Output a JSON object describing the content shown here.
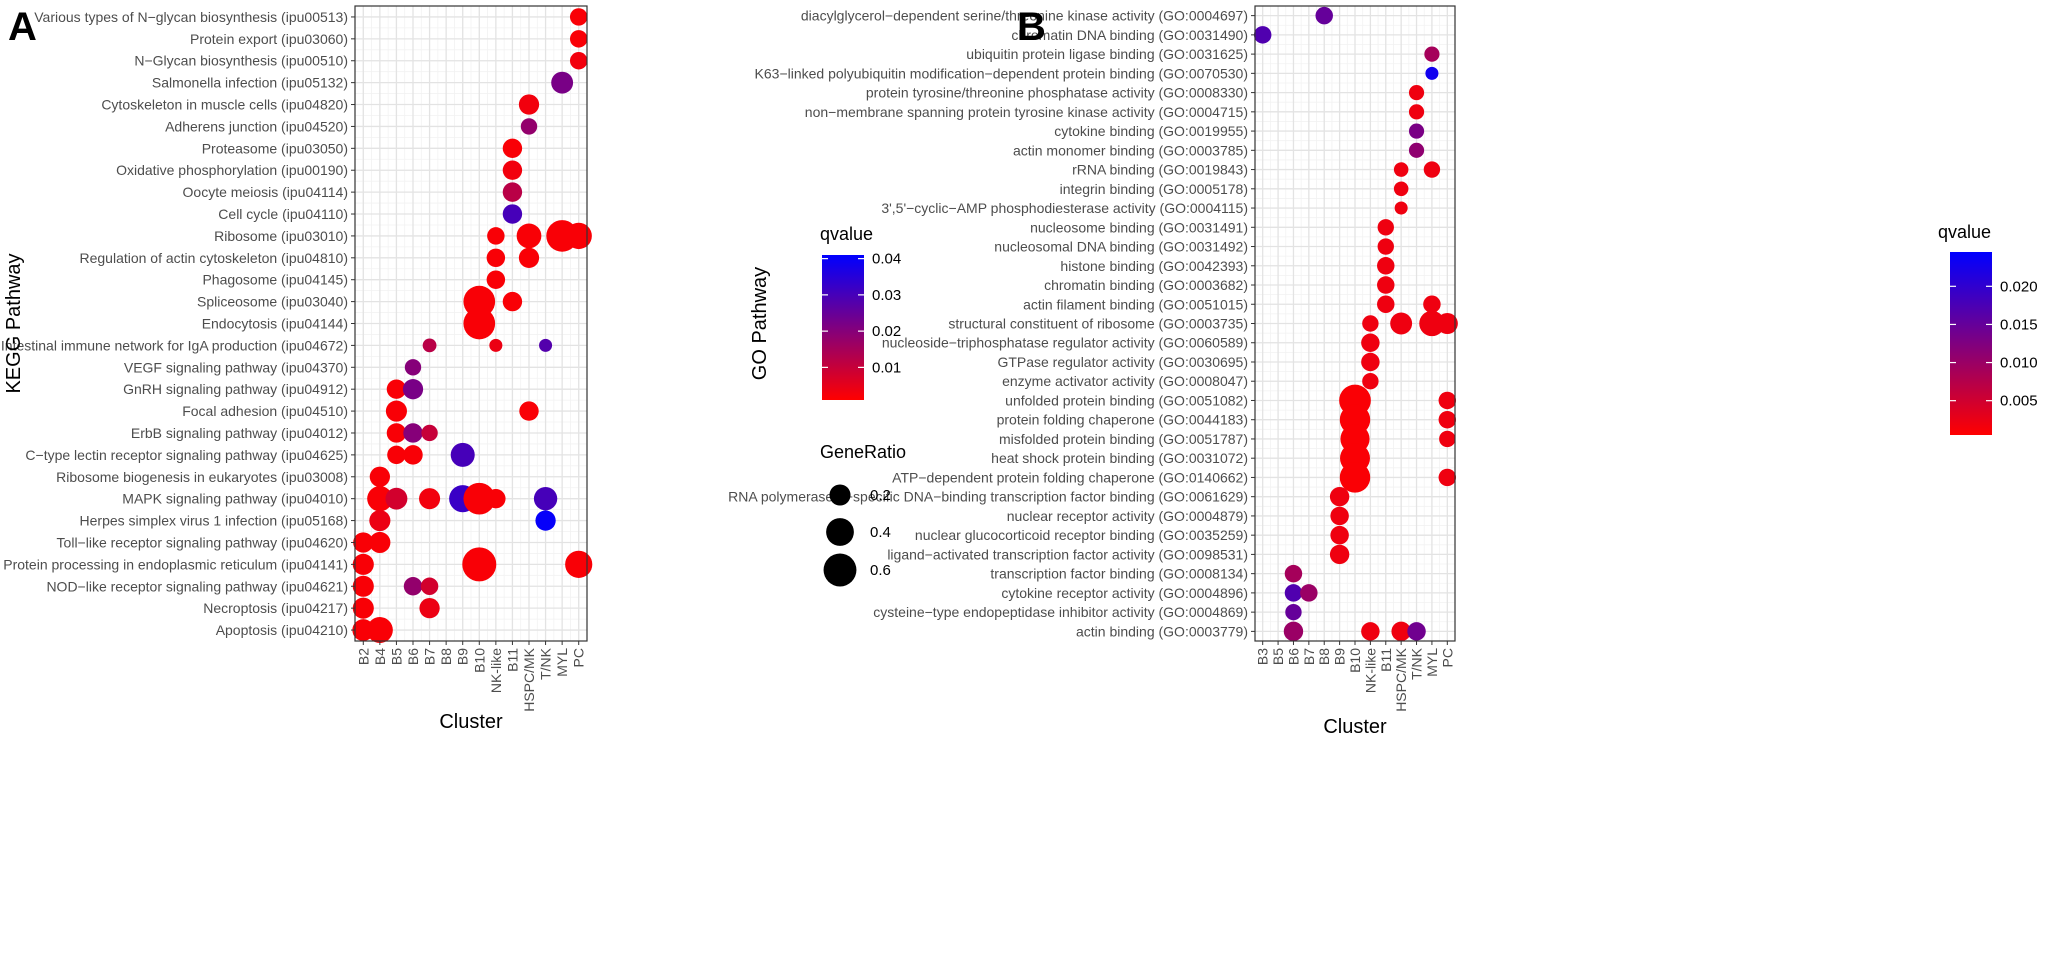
{
  "chart_data": [
    {
      "panel": "A",
      "type": "scatter",
      "xlabel": "Cluster",
      "ylabel": "KEGG Pathway",
      "categories_x": [
        "B2",
        "B4",
        "B5",
        "B6",
        "B7",
        "B8",
        "B9",
        "B10",
        "NK-like",
        "B11",
        "HSPC/MK",
        "T/NK",
        "MYL",
        "PC"
      ],
      "categories_y": [
        "Various types of N−glycan biosynthesis (ipu00513)",
        "Protein export (ipu03060)",
        "N−Glycan biosynthesis (ipu00510)",
        "Salmonella infection (ipu05132)",
        "Cytoskeleton in muscle cells (ipu04820)",
        "Adherens junction (ipu04520)",
        "Proteasome (ipu03050)",
        "Oxidative phosphorylation (ipu00190)",
        "Oocyte meiosis (ipu04114)",
        "Cell cycle (ipu04110)",
        "Ribosome (ipu03010)",
        "Regulation of actin cytoskeleton (ipu04810)",
        "Phagosome (ipu04145)",
        "Spliceosome (ipu03040)",
        "Endocytosis (ipu04144)",
        "Intestinal immune network for IgA production (ipu04672)",
        "VEGF signaling pathway (ipu04370)",
        "GnRH signaling pathway (ipu04912)",
        "Focal adhesion (ipu04510)",
        "ErbB signaling pathway (ipu04012)",
        "C−type lectin receptor signaling pathway (ipu04625)",
        "Ribosome biogenesis in eukaryotes (ipu03008)",
        "MAPK signaling pathway (ipu04010)",
        "Herpes simplex virus 1 infection (ipu05168)",
        "Toll−like receptor signaling pathway (ipu04620)",
        "Protein processing in endoplasmic reticulum (ipu04141)",
        "NOD−like receptor signaling pathway (ipu04621)",
        "Necroptosis (ipu04217)",
        "Apoptosis (ipu04210)"
      ],
      "points": [
        {
          "x": "PC",
          "y": 0,
          "ratio": 0.12,
          "q": 0.002
        },
        {
          "x": "PC",
          "y": 1,
          "ratio": 0.12,
          "q": 0.002
        },
        {
          "x": "PC",
          "y": 2,
          "ratio": 0.12,
          "q": 0.003
        },
        {
          "x": "MYL",
          "y": 3,
          "ratio": 0.22,
          "q": 0.022
        },
        {
          "x": "HSPC/MK",
          "y": 4,
          "ratio": 0.18,
          "q": 0.003
        },
        {
          "x": "HSPC/MK",
          "y": 5,
          "ratio": 0.1,
          "q": 0.018
        },
        {
          "x": "B11",
          "y": 6,
          "ratio": 0.16,
          "q": 0.002
        },
        {
          "x": "B11",
          "y": 7,
          "ratio": 0.16,
          "q": 0.003
        },
        {
          "x": "B11",
          "y": 8,
          "ratio": 0.16,
          "q": 0.012
        },
        {
          "x": "B11",
          "y": 9,
          "ratio": 0.16,
          "q": 0.03
        },
        {
          "x": "NK-like",
          "y": 10,
          "ratio": 0.12,
          "q": 0.002
        },
        {
          "x": "HSPC/MK",
          "y": 10,
          "ratio": 0.3,
          "q": 0.002
        },
        {
          "x": "MYL",
          "y": 10,
          "ratio": 0.55,
          "q": 0.002
        },
        {
          "x": "PC",
          "y": 10,
          "ratio": 0.35,
          "q": 0.002
        },
        {
          "x": "NK-like",
          "y": 11,
          "ratio": 0.14,
          "q": 0.002
        },
        {
          "x": "HSPC/MK",
          "y": 11,
          "ratio": 0.18,
          "q": 0.002
        },
        {
          "x": "NK-like",
          "y": 12,
          "ratio": 0.14,
          "q": 0.002
        },
        {
          "x": "B10",
          "y": 13,
          "ratio": 0.55,
          "q": 0.002
        },
        {
          "x": "B11",
          "y": 13,
          "ratio": 0.16,
          "q": 0.002
        },
        {
          "x": "B10",
          "y": 14,
          "ratio": 0.55,
          "q": 0.002
        },
        {
          "x": "B7",
          "y": 15,
          "ratio": 0.06,
          "q": 0.012
        },
        {
          "x": "NK-like",
          "y": 15,
          "ratio": 0.05,
          "q": 0.004
        },
        {
          "x": "T/NK",
          "y": 15,
          "ratio": 0.05,
          "q": 0.028
        },
        {
          "x": "B6",
          "y": 16,
          "ratio": 0.1,
          "q": 0.02
        },
        {
          "x": "B5",
          "y": 17,
          "ratio": 0.16,
          "q": 0.002
        },
        {
          "x": "B6",
          "y": 17,
          "ratio": 0.18,
          "q": 0.022
        },
        {
          "x": "B5",
          "y": 18,
          "ratio": 0.2,
          "q": 0.002
        },
        {
          "x": "HSPC/MK",
          "y": 18,
          "ratio": 0.16,
          "q": 0.002
        },
        {
          "x": "B5",
          "y": 19,
          "ratio": 0.16,
          "q": 0.002
        },
        {
          "x": "B6",
          "y": 19,
          "ratio": 0.16,
          "q": 0.02
        },
        {
          "x": "B7",
          "y": 19,
          "ratio": 0.1,
          "q": 0.01
        },
        {
          "x": "B5",
          "y": 20,
          "ratio": 0.14,
          "q": 0.002
        },
        {
          "x": "B6",
          "y": 20,
          "ratio": 0.16,
          "q": 0.002
        },
        {
          "x": "B9",
          "y": 20,
          "ratio": 0.28,
          "q": 0.03
        },
        {
          "x": "B4",
          "y": 21,
          "ratio": 0.18,
          "q": 0.002
        },
        {
          "x": "B4",
          "y": 22,
          "ratio": 0.32,
          "q": 0.002
        },
        {
          "x": "B5",
          "y": 22,
          "ratio": 0.22,
          "q": 0.008
        },
        {
          "x": "B7",
          "y": 22,
          "ratio": 0.2,
          "q": 0.003
        },
        {
          "x": "B9",
          "y": 22,
          "ratio": 0.38,
          "q": 0.032
        },
        {
          "x": "B10",
          "y": 22,
          "ratio": 0.55,
          "q": 0.002
        },
        {
          "x": "NK-like",
          "y": 22,
          "ratio": 0.16,
          "q": 0.002
        },
        {
          "x": "T/NK",
          "y": 22,
          "ratio": 0.26,
          "q": 0.03
        },
        {
          "x": "B4",
          "y": 23,
          "ratio": 0.2,
          "q": 0.004
        },
        {
          "x": "T/NK",
          "y": 23,
          "ratio": 0.18,
          "q": 0.04
        },
        {
          "x": "B2",
          "y": 24,
          "ratio": 0.18,
          "q": 0.002
        },
        {
          "x": "B4",
          "y": 24,
          "ratio": 0.2,
          "q": 0.002
        },
        {
          "x": "B2",
          "y": 25,
          "ratio": 0.2,
          "q": 0.002
        },
        {
          "x": "B10",
          "y": 25,
          "ratio": 0.65,
          "q": 0.002
        },
        {
          "x": "PC",
          "y": 25,
          "ratio": 0.38,
          "q": 0.002
        },
        {
          "x": "B2",
          "y": 26,
          "ratio": 0.2,
          "q": 0.002
        },
        {
          "x": "B6",
          "y": 26,
          "ratio": 0.14,
          "q": 0.018
        },
        {
          "x": "B7",
          "y": 26,
          "ratio": 0.12,
          "q": 0.008
        },
        {
          "x": "B2",
          "y": 27,
          "ratio": 0.2,
          "q": 0.002
        },
        {
          "x": "B7",
          "y": 27,
          "ratio": 0.18,
          "q": 0.004
        },
        {
          "x": "B2",
          "y": 28,
          "ratio": 0.22,
          "q": 0.002
        },
        {
          "x": "B4",
          "y": 28,
          "ratio": 0.34,
          "q": 0.002
        }
      ],
      "legend": {
        "color_title": "qvalue",
        "color_ticks": [
          "0.04",
          "0.03",
          "0.02",
          "0.01"
        ],
        "color_tick_values": [
          0.04,
          0.03,
          0.02,
          0.01
        ],
        "color_range": [
          0.001,
          0.041
        ],
        "size_title": "GeneRatio",
        "size_ticks": [
          "0.2",
          "0.4",
          "0.6"
        ],
        "size_tick_values": [
          0.2,
          0.4,
          0.6
        ]
      }
    },
    {
      "panel": "B",
      "type": "scatter",
      "xlabel": "Cluster",
      "ylabel": "GO Pathway",
      "categories_x": [
        "B3",
        "B5",
        "B6",
        "B7",
        "B8",
        "B9",
        "B10",
        "NK-like",
        "B11",
        "HSPC/MK",
        "T/NK",
        "MYL",
        "PC"
      ],
      "categories_y": [
        "diacylglycerol−dependent serine/threonine kinase activity (GO:0004697)",
        "chromatin DNA binding (GO:0031490)",
        "ubiquitin protein ligase binding (GO:0031625)",
        "K63−linked polyubiquitin modification−dependent protein binding (GO:0070530)",
        "protein tyrosine/threonine phosphatase activity (GO:0008330)",
        "non−membrane spanning protein tyrosine kinase activity (GO:0004715)",
        "cytokine binding (GO:0019955)",
        "actin monomer binding (GO:0003785)",
        "rRNA binding (GO:0019843)",
        "integrin binding (GO:0005178)",
        "3',5'−cyclic−AMP phosphodiesterase activity (GO:0004115)",
        "nucleosome binding (GO:0031491)",
        "nucleosomal DNA binding (GO:0031492)",
        "histone binding (GO:0042393)",
        "chromatin binding (GO:0003682)",
        "actin filament binding (GO:0051015)",
        "structural constituent of ribosome (GO:0003735)",
        "nucleoside−triphosphatase regulator activity (GO:0060589)",
        "GTPase regulator activity (GO:0030695)",
        "enzyme activator activity (GO:0008047)",
        "unfolded protein binding (GO:0051082)",
        "protein folding chaperone (GO:0044183)",
        "misfolded protein binding (GO:0051787)",
        "heat shock protein binding (GO:0031072)",
        "ATP−dependent protein folding chaperone (GO:0140662)",
        "RNA polymerase II−specific DNA−binding transcription factor binding (GO:0061629)",
        "nuclear receptor activity (GO:0004879)",
        "nuclear glucocorticoid receptor binding (GO:0035259)",
        "ligand−activated transcription factor activity (GO:0098531)",
        "transcription factor binding (GO:0008134)",
        "cytokine receptor activity (GO:0004896)",
        "cysteine−type endopeptidase inhibitor activity (GO:0004869)",
        "actin binding (GO:0003779)"
      ],
      "points": [
        {
          "x": "B8",
          "y": 0,
          "ratio": 0.12,
          "q": 0.015
        },
        {
          "x": "B3",
          "y": 1,
          "ratio": 0.12,
          "q": 0.017
        },
        {
          "x": "MYL",
          "y": 2,
          "ratio": 0.08,
          "q": 0.009
        },
        {
          "x": "MYL",
          "y": 3,
          "ratio": 0.05,
          "q": 0.023
        },
        {
          "x": "T/NK",
          "y": 4,
          "ratio": 0.08,
          "q": 0.002
        },
        {
          "x": "T/NK",
          "y": 5,
          "ratio": 0.08,
          "q": 0.002
        },
        {
          "x": "T/NK",
          "y": 6,
          "ratio": 0.08,
          "q": 0.013
        },
        {
          "x": "T/NK",
          "y": 7,
          "ratio": 0.08,
          "q": 0.011
        },
        {
          "x": "HSPC/MK",
          "y": 8,
          "ratio": 0.07,
          "q": 0.002
        },
        {
          "x": "MYL",
          "y": 8,
          "ratio": 0.1,
          "q": 0.002
        },
        {
          "x": "HSPC/MK",
          "y": 9,
          "ratio": 0.07,
          "q": 0.002
        },
        {
          "x": "HSPC/MK",
          "y": 10,
          "ratio": 0.05,
          "q": 0.002
        },
        {
          "x": "B11",
          "y": 11,
          "ratio": 0.1,
          "q": 0.002
        },
        {
          "x": "B11",
          "y": 12,
          "ratio": 0.1,
          "q": 0.002
        },
        {
          "x": "B11",
          "y": 13,
          "ratio": 0.12,
          "q": 0.002
        },
        {
          "x": "B11",
          "y": 14,
          "ratio": 0.12,
          "q": 0.002
        },
        {
          "x": "B11",
          "y": 15,
          "ratio": 0.12,
          "q": 0.002
        },
        {
          "x": "MYL",
          "y": 15,
          "ratio": 0.12,
          "q": 0.002
        },
        {
          "x": "NK-like",
          "y": 16,
          "ratio": 0.1,
          "q": 0.002
        },
        {
          "x": "HSPC/MK",
          "y": 16,
          "ratio": 0.22,
          "q": 0.002
        },
        {
          "x": "MYL",
          "y": 16,
          "ratio": 0.32,
          "q": 0.002
        },
        {
          "x": "PC",
          "y": 16,
          "ratio": 0.2,
          "q": 0.002
        },
        {
          "x": "NK-like",
          "y": 17,
          "ratio": 0.14,
          "q": 0.002
        },
        {
          "x": "NK-like",
          "y": 18,
          "ratio": 0.14,
          "q": 0.002
        },
        {
          "x": "NK-like",
          "y": 19,
          "ratio": 0.1,
          "q": 0.002
        },
        {
          "x": "B10",
          "y": 20,
          "ratio": 0.55,
          "q": 0.001
        },
        {
          "x": "PC",
          "y": 20,
          "ratio": 0.12,
          "q": 0.002
        },
        {
          "x": "B10",
          "y": 21,
          "ratio": 0.5,
          "q": 0.001
        },
        {
          "x": "PC",
          "y": 21,
          "ratio": 0.12,
          "q": 0.002
        },
        {
          "x": "B10",
          "y": 22,
          "ratio": 0.45,
          "q": 0.001
        },
        {
          "x": "PC",
          "y": 22,
          "ratio": 0.1,
          "q": 0.002
        },
        {
          "x": "B10",
          "y": 23,
          "ratio": 0.48,
          "q": 0.001
        },
        {
          "x": "B10",
          "y": 24,
          "ratio": 0.5,
          "q": 0.001
        },
        {
          "x": "PC",
          "y": 24,
          "ratio": 0.12,
          "q": 0.002
        },
        {
          "x": "B9",
          "y": 25,
          "ratio": 0.16,
          "q": 0.002
        },
        {
          "x": "B9",
          "y": 26,
          "ratio": 0.14,
          "q": 0.002
        },
        {
          "x": "B9",
          "y": 27,
          "ratio": 0.14,
          "q": 0.002
        },
        {
          "x": "B9",
          "y": 28,
          "ratio": 0.16,
          "q": 0.002
        },
        {
          "x": "B6",
          "y": 29,
          "ratio": 0.12,
          "q": 0.009
        },
        {
          "x": "B6",
          "y": 30,
          "ratio": 0.12,
          "q": 0.017
        },
        {
          "x": "B7",
          "y": 30,
          "ratio": 0.12,
          "q": 0.01
        },
        {
          "x": "B6",
          "y": 31,
          "ratio": 0.1,
          "q": 0.015
        },
        {
          "x": "B6",
          "y": 32,
          "ratio": 0.16,
          "q": 0.01
        },
        {
          "x": "NK-like",
          "y": 32,
          "ratio": 0.14,
          "q": 0.002
        },
        {
          "x": "HSPC/MK",
          "y": 32,
          "ratio": 0.16,
          "q": 0.002
        },
        {
          "x": "T/NK",
          "y": 32,
          "ratio": 0.14,
          "q": 0.014
        }
      ],
      "legend": {
        "color_title": "qvalue",
        "color_ticks": [
          "0.020",
          "0.015",
          "0.010",
          "0.005"
        ],
        "color_tick_values": [
          0.02,
          0.015,
          0.01,
          0.005
        ],
        "color_range": [
          0.0005,
          0.0245
        ]
      }
    }
  ]
}
